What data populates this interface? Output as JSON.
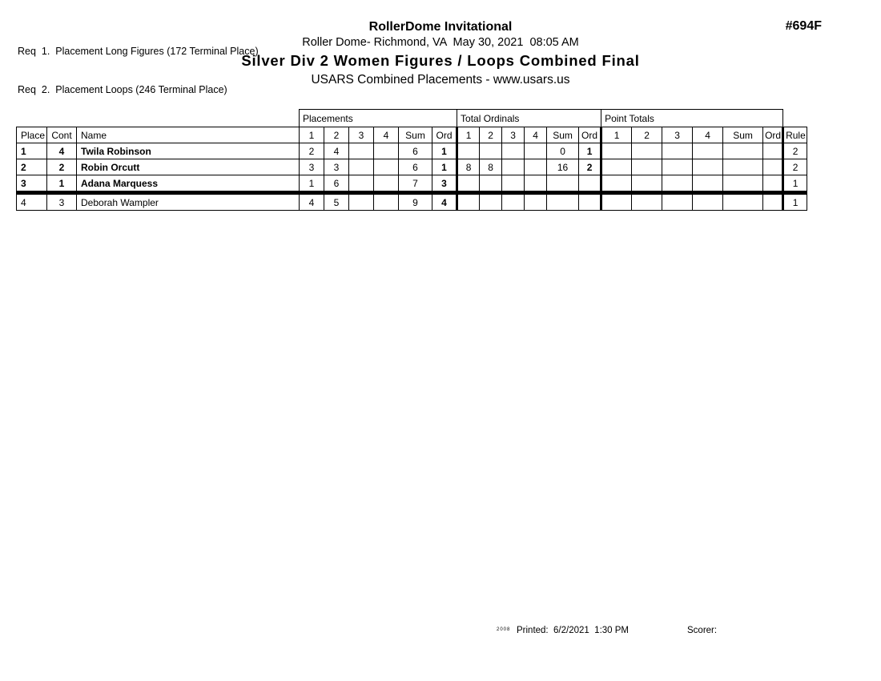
{
  "page": {
    "req_lines": [
      "Req  1.  Placement Long Figures (172 Terminal Place)",
      "Req  2.  Placement Loops (246 Terminal Place)"
    ],
    "title": "RollerDome Invitational",
    "venue_line": "Roller Dome- Richmond, VA  May 30, 2021  08:05 AM",
    "event_title": "Silver Div 2 Women Figures / Loops Combined Final",
    "subtitle": "USARS Combined Placements - www.usars.us",
    "event_number": "#694F"
  },
  "table": {
    "group_headers": [
      "Placements",
      "Total Ordinals",
      "Point Totals"
    ],
    "columns": [
      "Place",
      "Cont",
      "Name",
      "1",
      "2",
      "3",
      "4",
      "Sum",
      "Ord",
      "1",
      "2",
      "3",
      "4",
      "Sum",
      "Ord",
      "1",
      "2",
      "3",
      "4",
      "Sum",
      "Ord",
      "Rule"
    ],
    "rows": [
      {
        "bold": true,
        "thick_bottom": false,
        "cells": [
          "1",
          "4",
          "Twila Robinson",
          "2",
          "4",
          "",
          "",
          "6",
          "1",
          "",
          "",
          "",
          "",
          "0",
          "1",
          "",
          "",
          "",
          "",
          "",
          "",
          "2"
        ]
      },
      {
        "bold": true,
        "thick_bottom": false,
        "cells": [
          "2",
          "2",
          "Robin Orcutt",
          "3",
          "3",
          "",
          "",
          "6",
          "1",
          "8",
          "8",
          "",
          "",
          "16",
          "2",
          "",
          "",
          "",
          "",
          "",
          "",
          "2"
        ]
      },
      {
        "bold": true,
        "thick_bottom": true,
        "cells": [
          "3",
          "1",
          "Adana Marquess",
          "1",
          "6",
          "",
          "",
          "7",
          "3",
          "",
          "",
          "",
          "",
          "",
          "",
          "",
          "",
          "",
          "",
          "",
          "",
          "1"
        ]
      },
      {
        "bold": false,
        "thick_bottom": false,
        "cells": [
          "4",
          "3",
          "Deborah Wampler",
          "4",
          "5",
          "",
          "",
          "9",
          "4",
          "",
          "",
          "",
          "",
          "",
          "",
          "",
          "",
          "",
          "",
          "",
          "",
          "1"
        ]
      }
    ]
  },
  "footer": {
    "stamp": "2008",
    "printed": "Printed:  6/2/2021  1:30 PM",
    "scorer": "Scorer:"
  },
  "colors": {
    "ink": "#000000",
    "paper": "#ffffff"
  }
}
